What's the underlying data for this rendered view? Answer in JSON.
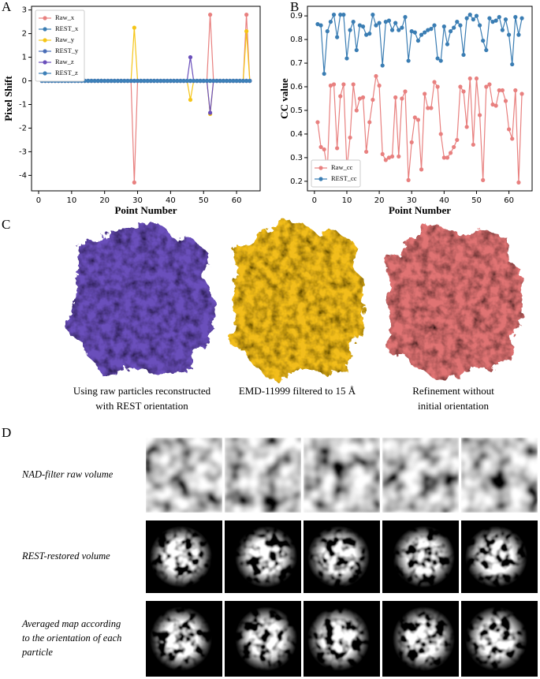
{
  "chart_data": [
    {
      "type": "line",
      "panel": "A",
      "ylabel": "Pixel Shift",
      "xlabel": "Point Number",
      "legend": "upper left",
      "x": [
        1,
        2,
        3,
        4,
        5,
        6,
        7,
        8,
        9,
        10,
        11,
        12,
        13,
        14,
        15,
        16,
        17,
        18,
        19,
        20,
        21,
        22,
        23,
        24,
        25,
        26,
        27,
        28,
        29,
        30,
        31,
        32,
        33,
        34,
        35,
        36,
        37,
        38,
        39,
        40,
        41,
        42,
        43,
        44,
        45,
        46,
        47,
        48,
        49,
        50,
        51,
        52,
        53,
        54,
        55,
        56,
        57,
        58,
        59,
        60,
        61,
        62,
        63,
        64
      ],
      "xlim": [
        -2.15,
        67.15
      ],
      "xticks": [
        0,
        10,
        20,
        30,
        40,
        50,
        60
      ],
      "ylim": [
        -4.655,
        3.155
      ],
      "yticks": [
        -4,
        -3,
        -2,
        -1,
        0,
        1,
        2,
        3
      ],
      "series": [
        {
          "name": "Raw_x",
          "color": "#e8807f",
          "values": [
            0,
            0,
            0,
            0,
            0,
            0,
            0,
            0,
            0,
            0,
            0,
            0,
            0,
            0,
            0,
            0,
            0,
            0,
            0,
            0,
            0,
            0,
            0,
            0,
            0,
            0,
            0,
            0,
            -4.3,
            0,
            0,
            0,
            0,
            0,
            0,
            0,
            0,
            0,
            0,
            0,
            0,
            0,
            0,
            0,
            0,
            0,
            0,
            0,
            0,
            0,
            0,
            2.8,
            0,
            0,
            0,
            0,
            0,
            0,
            0,
            0,
            0,
            0,
            2.8,
            0
          ]
        },
        {
          "name": "REST_x",
          "color": "#3a7db3",
          "values": [
            0,
            0,
            0,
            0,
            0,
            0,
            0,
            0,
            0,
            0,
            0,
            0,
            0,
            0,
            0,
            0,
            0,
            0,
            0,
            0,
            0,
            0,
            0,
            0,
            0,
            0,
            0,
            0,
            0,
            0,
            0,
            0,
            0,
            0,
            0,
            0,
            0,
            0,
            0,
            0,
            0,
            0,
            0,
            0,
            0,
            0,
            0,
            0,
            0,
            0,
            0,
            0,
            0,
            0,
            0,
            0,
            0,
            0,
            0,
            0,
            0,
            0,
            0,
            0
          ]
        },
        {
          "name": "Raw_y",
          "color": "#f5c518",
          "values": [
            0,
            0,
            0,
            0,
            0,
            0,
            0,
            0,
            0,
            0,
            0,
            0,
            0,
            0,
            0,
            0,
            0,
            0,
            0,
            0,
            0,
            0,
            0,
            0,
            0,
            0,
            0,
            0,
            2.25,
            0,
            0,
            0,
            0,
            0,
            0,
            0,
            0,
            0,
            0,
            0,
            0,
            0,
            0,
            0,
            0,
            -0.8,
            0,
            0,
            0,
            0,
            0,
            -1.4,
            0,
            0,
            0,
            0,
            0,
            0,
            0,
            0,
            0,
            0,
            2.1,
            0
          ]
        },
        {
          "name": "REST_y",
          "color": "#4a6db6",
          "values": [
            0,
            0,
            0,
            0,
            0,
            0,
            0,
            0,
            0,
            0,
            0,
            0,
            0,
            0,
            0,
            0,
            0,
            0,
            0,
            0,
            0,
            0,
            0,
            0,
            0,
            0,
            0,
            0,
            0,
            0,
            0,
            0,
            0,
            0,
            0,
            0,
            0,
            0,
            0,
            0,
            0,
            0,
            0,
            0,
            0,
            0,
            0,
            0,
            0,
            0,
            0,
            0,
            0,
            0,
            0,
            0,
            0,
            0,
            0,
            0,
            0,
            0,
            0,
            0
          ]
        },
        {
          "name": "Raw_z",
          "color": "#6a4fbb",
          "values": [
            0,
            0,
            0,
            0,
            0,
            0,
            0,
            0,
            0,
            0,
            0,
            0,
            0,
            0,
            0,
            0,
            0,
            0,
            0,
            0,
            0,
            0,
            0,
            0,
            0,
            0,
            0,
            0,
            0,
            0,
            0,
            0,
            0,
            0,
            0,
            0,
            0,
            0,
            0,
            0,
            0,
            0,
            0,
            0,
            0,
            1,
            0,
            0,
            0,
            0,
            0,
            -1.35,
            0,
            0,
            0,
            0,
            0,
            0,
            0,
            0,
            0,
            0,
            0,
            0
          ]
        },
        {
          "name": "REST_z",
          "color": "#3d80b8",
          "values": [
            0,
            0,
            0,
            0,
            0,
            0,
            0,
            0,
            0,
            0,
            0,
            0,
            0,
            0,
            0,
            0,
            0,
            0,
            0,
            0,
            0,
            0,
            0,
            0,
            0,
            0,
            0,
            0,
            0,
            0,
            0,
            0,
            0,
            0,
            0,
            0,
            0,
            0,
            0,
            0,
            0,
            0,
            0,
            0,
            0,
            0,
            0,
            0,
            0,
            0,
            0,
            0,
            0,
            0,
            0,
            0,
            0,
            0,
            0,
            0,
            0,
            0,
            0,
            0
          ]
        }
      ]
    },
    {
      "type": "line",
      "panel": "B",
      "ylabel": "CC value",
      "xlabel": "Point Number",
      "legend": "lower left",
      "x": [
        1,
        2,
        3,
        4,
        5,
        6,
        7,
        8,
        9,
        10,
        11,
        12,
        13,
        14,
        15,
        16,
        17,
        18,
        19,
        20,
        21,
        22,
        23,
        24,
        25,
        26,
        27,
        28,
        29,
        30,
        31,
        32,
        33,
        34,
        35,
        36,
        37,
        38,
        39,
        40,
        41,
        42,
        43,
        44,
        45,
        46,
        47,
        48,
        49,
        50,
        51,
        52,
        53,
        54,
        55,
        56,
        57,
        58,
        59,
        60,
        61,
        62,
        63,
        64
      ],
      "xlim": [
        -2.15,
        67.15
      ],
      "xticks": [
        0,
        10,
        20,
        30,
        40,
        50,
        60
      ],
      "ylim": [
        0.1595,
        0.9405
      ],
      "yticks": [
        0.2,
        0.3,
        0.4,
        0.5,
        0.6,
        0.7,
        0.8,
        0.9
      ],
      "series": [
        {
          "name": "Raw_cc",
          "color": "#e8807f",
          "values": [
            0.45,
            0.345,
            0.335,
            0.25,
            0.605,
            0.61,
            0.34,
            0.56,
            0.61,
            0.255,
            0.385,
            0.61,
            0.5,
            0.55,
            0.555,
            0.325,
            0.45,
            0.545,
            0.645,
            0.605,
            0.315,
            0.29,
            0.3,
            0.305,
            0.555,
            0.305,
            0.55,
            0.58,
            0.205,
            0.365,
            0.47,
            0.46,
            0.25,
            0.57,
            0.51,
            0.51,
            0.62,
            0.6,
            0.4,
            0.3,
            0.3,
            0.32,
            0.345,
            0.375,
            0.6,
            0.58,
            0.43,
            0.635,
            0.355,
            0.635,
            0.48,
            0.205,
            0.6,
            0.61,
            0.525,
            0.52,
            0.585,
            0.585,
            0.54,
            0.42,
            0.38,
            0.585,
            0.195,
            0.57
          ]
        },
        {
          "name": "REST_cc",
          "color": "#3a7db3",
          "values": [
            0.865,
            0.86,
            0.655,
            0.835,
            0.875,
            0.905,
            0.81,
            0.905,
            0.905,
            0.72,
            0.84,
            0.875,
            0.755,
            0.86,
            0.855,
            0.82,
            0.825,
            0.905,
            0.86,
            0.87,
            0.69,
            0.875,
            0.88,
            0.84,
            0.87,
            0.84,
            0.85,
            0.895,
            0.71,
            0.835,
            0.83,
            0.795,
            0.82,
            0.83,
            0.84,
            0.845,
            0.86,
            0.72,
            0.71,
            0.855,
            0.78,
            0.835,
            0.85,
            0.875,
            0.86,
            0.735,
            0.89,
            0.905,
            0.885,
            0.9,
            0.86,
            0.795,
            0.755,
            0.89,
            0.875,
            0.88,
            0.895,
            0.84,
            0.885,
            0.82,
            0.695,
            0.895,
            0.82,
            0.89
          ]
        }
      ]
    }
  ],
  "panel_c": {
    "label": "C",
    "maps": [
      {
        "color": "#6a4fbb",
        "caption": [
          "Using raw particles reconstructed",
          "with REST orientation"
        ]
      },
      {
        "color": "#f2bd1d",
        "caption": [
          "EMD-11999 filtered to 15 Å"
        ]
      },
      {
        "color": "#e07373",
        "caption": [
          "Refinement without",
          "initial orientation"
        ]
      }
    ]
  },
  "panel_d": {
    "label": "D",
    "rows": [
      [
        "NAD-filter raw volume"
      ],
      [
        "REST-restored volume"
      ],
      [
        "Averaged map according",
        "to the orientation of each",
        "particle"
      ]
    ]
  }
}
